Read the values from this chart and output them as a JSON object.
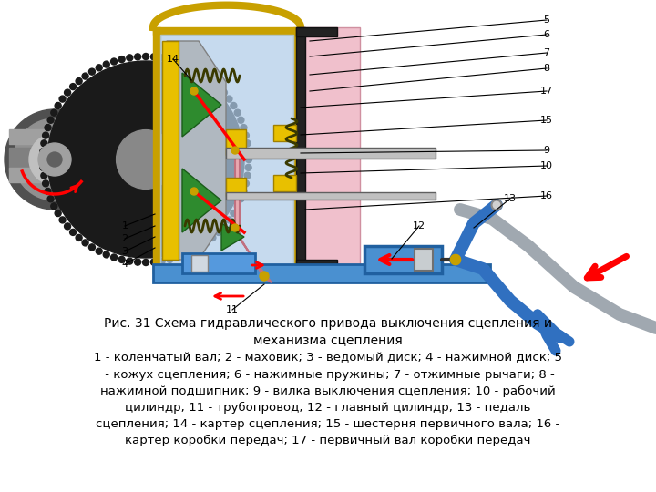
{
  "background_color": "#ffffff",
  "title_line1": "Рис. 31 Схема гидравлического привода выключения сцепления и",
  "title_line2": "механизма сцепления",
  "caption_lines": [
    "1 - коленчатый вал; 2 - маховик; 3 - ведомый диск; 4 - нажимной диск; 5",
    " - кожух сцепления; 6 - нажимные пружины; 7 - отжимные рычаги; 8 -",
    "нажимной подшипник; 9 - вилка выключения сцепления; 10 - рабочий",
    "цилиндр; 11 - трубопровод; 12 - главный цилиндр; 13 - педаль",
    "сцепления; 14 - картер сцепления; 15 - шестерня первичного вала; 16 -",
    "картер коробки передач; 17 - первичный вал коробки передач"
  ],
  "fig_width": 7.2,
  "fig_height": 5.4,
  "dpi": 100,
  "text_color": "#000000",
  "title_fontsize": 10,
  "caption_fontsize": 9.5,
  "label_fontsize": 8
}
